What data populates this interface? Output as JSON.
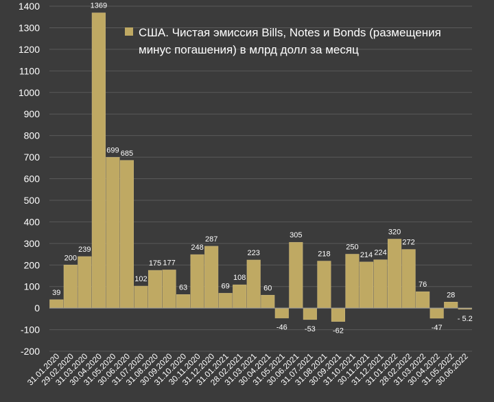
{
  "chart_data": {
    "type": "bar",
    "title": "",
    "legend": {
      "placement": "top-right",
      "lines": [
        "США. Чистая эмиссия Bills, Notes и Bonds (размещения",
        "минус погашения) в млрд долл за месяц"
      ]
    },
    "series": [
      {
        "name": "США. Чистая эмиссия Bills, Notes и Bonds (размещения минус погашения) в млрд долл за месяц"
      }
    ],
    "categories": [
      "31.01.2020",
      "29.02.2020",
      "31.03.2020",
      "30.04.2020",
      "31.05.2020",
      "30.06.2020",
      "31.07.2020",
      "31.08.2020",
      "30.09.2020",
      "31.10.2020",
      "30.11.2020",
      "31.12.2020",
      "31.01.2021",
      "28.02.2021",
      "31.03.2021",
      "30.04.2021",
      "31.05.2021",
      "30.06.2021",
      "31.07.2021",
      "31.08.2021",
      "30.09.2021",
      "31.10.2021",
      "30.11.2021",
      "31.12.2021",
      "31.01.2022",
      "28.02.2022",
      "31.03.2022",
      "30.04.2022",
      "31.05.2022",
      "30.06.2022"
    ],
    "values": [
      39,
      200,
      239,
      1369,
      699,
      685,
      102,
      175,
      177,
      63,
      248,
      287,
      69,
      108,
      223,
      60,
      -46,
      305,
      -53,
      218,
      -62,
      250,
      214,
      224,
      320,
      272,
      76,
      -47,
      28,
      -5.2
    ],
    "data_labels": [
      "39",
      "200",
      "239",
      "1369",
      "699",
      "685",
      "102",
      "175",
      "177",
      "63",
      "248",
      "287",
      "69",
      "108",
      "223",
      "60",
      "-46",
      "305",
      "-53",
      "218",
      "-62",
      "250",
      "214",
      "224",
      "320",
      "272",
      "76",
      "-47",
      "28",
      "- 5.2"
    ],
    "ylim": [
      -200,
      1400
    ],
    "yticks": [
      1400,
      1300,
      1200,
      1100,
      1000,
      900,
      800,
      700,
      600,
      500,
      400,
      300,
      200,
      100,
      0,
      -100,
      -200
    ],
    "grid": true,
    "xlabel": "",
    "ylabel": "",
    "colors": {
      "background": "#3b3b3b",
      "bar_fill": "#bfa963",
      "bar_stroke": "#c9b57a",
      "text": "#ffffff",
      "grid": "#5a5a5a"
    }
  }
}
